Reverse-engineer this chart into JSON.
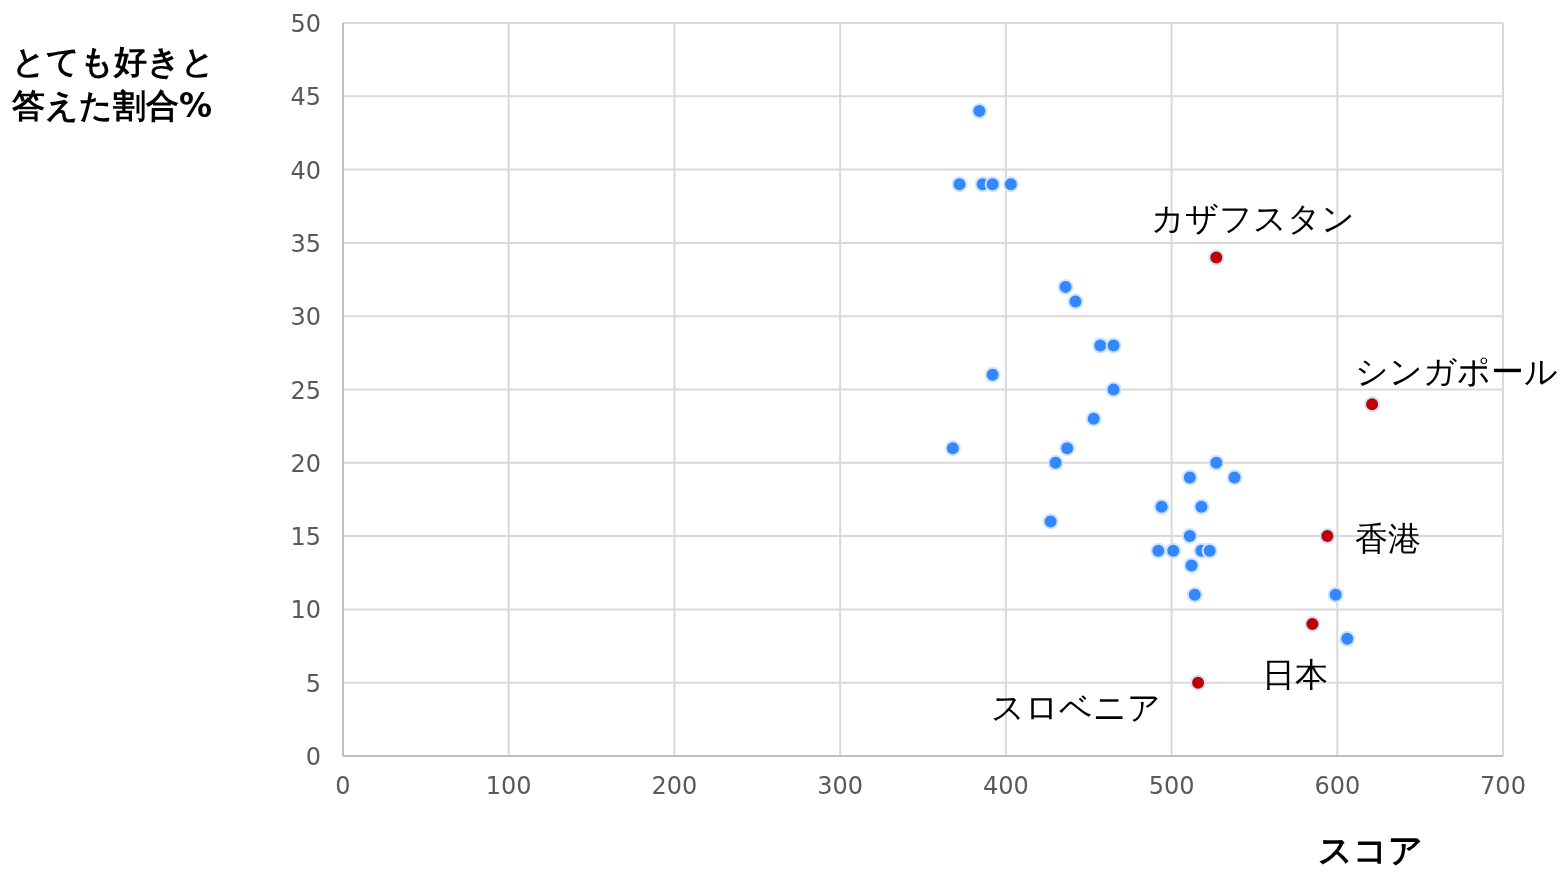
{
  "chart_data": {
    "type": "scatter",
    "xlabel": "スコア",
    "ylabel": "とても好きと答えた割合%",
    "xlim": [
      0,
      700
    ],
    "ylim": [
      0,
      50
    ],
    "xticks": [
      0,
      100,
      200,
      300,
      400,
      500,
      600,
      700
    ],
    "yticks": [
      0,
      5,
      10,
      15,
      20,
      25,
      30,
      35,
      40,
      45,
      50
    ],
    "grid": true,
    "marker": "circle",
    "series": [
      {
        "color": "#3388ff",
        "x": [
          384,
          372,
          386,
          392,
          403,
          436,
          442,
          457,
          465,
          392,
          465,
          453,
          368,
          437,
          430,
          527,
          511,
          538,
          494,
          518,
          427,
          511,
          492,
          501,
          518,
          523,
          512,
          514,
          599,
          606
        ],
        "values": [
          44,
          39,
          39,
          39,
          39,
          32,
          31,
          28,
          28,
          26,
          25,
          23,
          21,
          21,
          20,
          20,
          19,
          19,
          17,
          17,
          16,
          15,
          14,
          14,
          14,
          14,
          13,
          11,
          11,
          8
        ]
      },
      {
        "color": "#c00000",
        "x": [
          527,
          621,
          594,
          585,
          516
        ],
        "values": [
          34,
          24,
          15,
          9,
          5
        ]
      }
    ],
    "annotations": [
      {
        "text": "カザフスタン",
        "x": 527,
        "y": 34
      },
      {
        "text": "シンガポール",
        "x": 621,
        "y": 24
      },
      {
        "text": "香港",
        "x": 594,
        "y": 15
      },
      {
        "text": "日本",
        "x": 585,
        "y": 9
      },
      {
        "text": "スロベニア",
        "x": 516,
        "y": 5
      }
    ]
  }
}
